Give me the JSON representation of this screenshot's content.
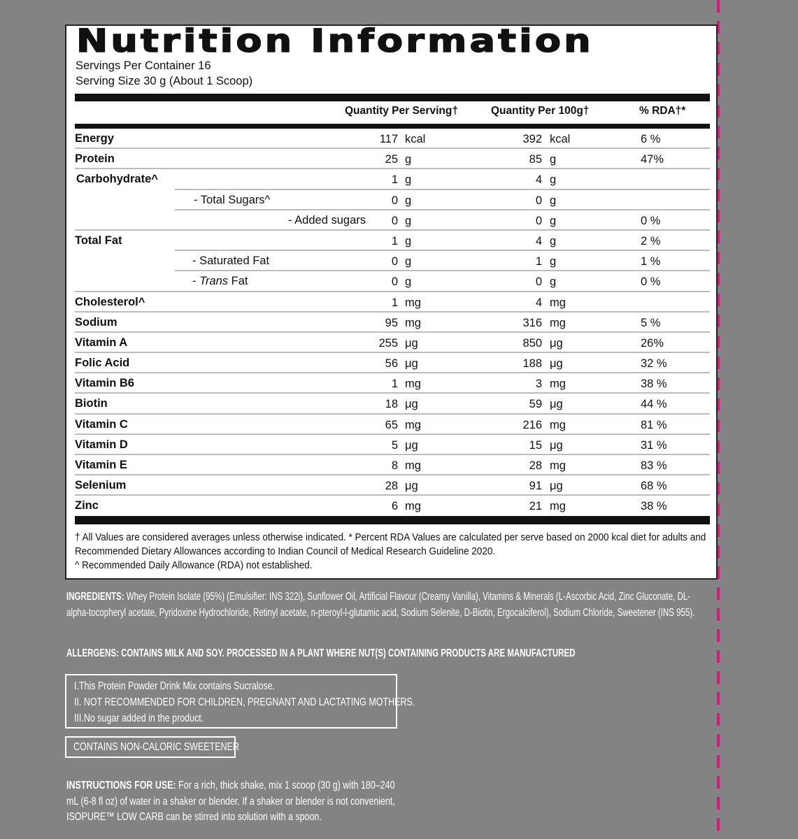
{
  "title": "Nutrition Information",
  "servings_per_container": "Servings Per Container 16",
  "serving_size": "Serving Size 30 g (About 1 Scoop)",
  "columns": {
    "per_serving": "Quantity Per Serving†",
    "per_100g": "Quantity Per 100g†",
    "rda": "% RDA†*"
  },
  "rows": [
    {
      "name": "Energy",
      "v1": "117",
      "u1": "kcal",
      "v2": "392",
      "u2": "kcal",
      "rda": "6 %"
    },
    {
      "name": "Protein",
      "v1": "25",
      "u1": "g",
      "v2": "85",
      "u2": "g",
      "rda": "47%"
    },
    {
      "name": "Carbohydrate^",
      "v1": "1",
      "u1": "g",
      "v2": "4",
      "u2": "g",
      "rda": ""
    },
    {
      "name": "- Total Sugars^",
      "v1": "0",
      "u1": "g",
      "v2": "0",
      "u2": "g",
      "rda": ""
    },
    {
      "name": "- Added sugars",
      "v1": "0",
      "u1": "g",
      "v2": "0",
      "u2": "g",
      "rda": "0 %"
    },
    {
      "name": "Total Fat",
      "v1": "1",
      "u1": "g",
      "v2": "4",
      "u2": "g",
      "rda": "2 %"
    },
    {
      "name": "- Saturated Fat",
      "v1": "0",
      "u1": "g",
      "v2": "1",
      "u2": "g",
      "rda": "1 %"
    },
    {
      "name": "- Trans Fat",
      "v1": "0",
      "u1": "g",
      "v2": "0",
      "u2": "g",
      "rda": "0 %"
    },
    {
      "name": "Cholesterol^",
      "v1": "1",
      "u1": "mg",
      "v2": "4",
      "u2": "mg",
      "rda": ""
    },
    {
      "name": "Sodium",
      "v1": "95",
      "u1": "mg",
      "v2": "316",
      "u2": "mg",
      "rda": "5 %"
    },
    {
      "name": "Vitamin A",
      "v1": "255",
      "u1": "μg",
      "v2": "850",
      "u2": "μg",
      "rda": "26%"
    },
    {
      "name": "Folic Acid",
      "v1": "56",
      "u1": "μg",
      "v2": "188",
      "u2": "μg",
      "rda": "32 %"
    },
    {
      "name": "Vitamin B6",
      "v1": "1",
      "u1": "mg",
      "v2": "3",
      "u2": "mg",
      "rda": "38 %"
    },
    {
      "name": "Biotin",
      "v1": "18",
      "u1": "μg",
      "v2": "59",
      "u2": "μg",
      "rda": "44 %"
    },
    {
      "name": "Vitamin C",
      "v1": "65",
      "u1": "mg",
      "v2": "216",
      "u2": "mg",
      "rda": "81 %"
    },
    {
      "name": "Vitamin D",
      "v1": "5",
      "u1": "μg",
      "v2": "15",
      "u2": "μg",
      "rda": "31 %"
    },
    {
      "name": "Vitamin E",
      "v1": "8",
      "u1": "mg",
      "v2": "28",
      "u2": "mg",
      "rda": "83 %"
    },
    {
      "name": "Selenium",
      "v1": "28",
      "u1": "μg",
      "v2": "91",
      "u2": "μg",
      "rda": "68 %"
    },
    {
      "name": "Zinc",
      "v1": "6",
      "u1": "mg",
      "v2": "21",
      "u2": "mg",
      "rda": "38 %"
    }
  ],
  "footnotes": [
    "† All Values are considered averages unless otherwise indicated. * Percent RDA Values are calculated per serve based on 2000 kcal diet for adults and Recommended Dietary Allowances according to Indian Council of Medical Research Guideline 2020.",
    "^ Recommended Daily Allowance (RDA) not established."
  ],
  "ingredients": {
    "label": "INGREDIENTS:",
    "text": " Whey Protein Isolate (95%) (Emulsifier: INS 322i), Sunflower Oil, Artificial Flavour (Creamy Vanilla), Vitamins & Minerals (L-Ascorbic Acid, Zinc Gluconate, DL-alpha-tocopheryl acetate, Pyridoxine Hydrochloride, Retinyl acetate, n-pteroyl-l-glutamic acid, Sodium Selenite, D-Biotin, Ergocalciferol), Sodium Chloride, Sweetener (INS 955)."
  },
  "allergens": "ALLERGENS: CONTAINS MILK AND SOY. PROCESSED IN A PLANT WHERE NUT(S) CONTAINING PRODUCTS ARE MANUFACTURED",
  "warnings": [
    "I.This Protein Powder Drink Mix contains Sucralose.",
    "II. NOT RECOMMENDED FOR CHILDREN, PREGNANT AND LACTATING MOTHERS.",
    "III.No sugar added in the product."
  ],
  "sweetener_note": "CONTAINS NON-CALORIC SWEETENER",
  "instructions": {
    "label": "INSTRUCTIONS FOR USE:",
    "text": " For a rich, thick shake, mix 1 scoop (30 g) with 180–240 mL (6-8 fl oz) of water in a shaker or blender. If a shaker or blender is not convenient, ISOPURE™ LOW CARB can be stirred into solution with a spoon."
  },
  "colors": {
    "background": "#838386",
    "accent": "#e0147a"
  }
}
